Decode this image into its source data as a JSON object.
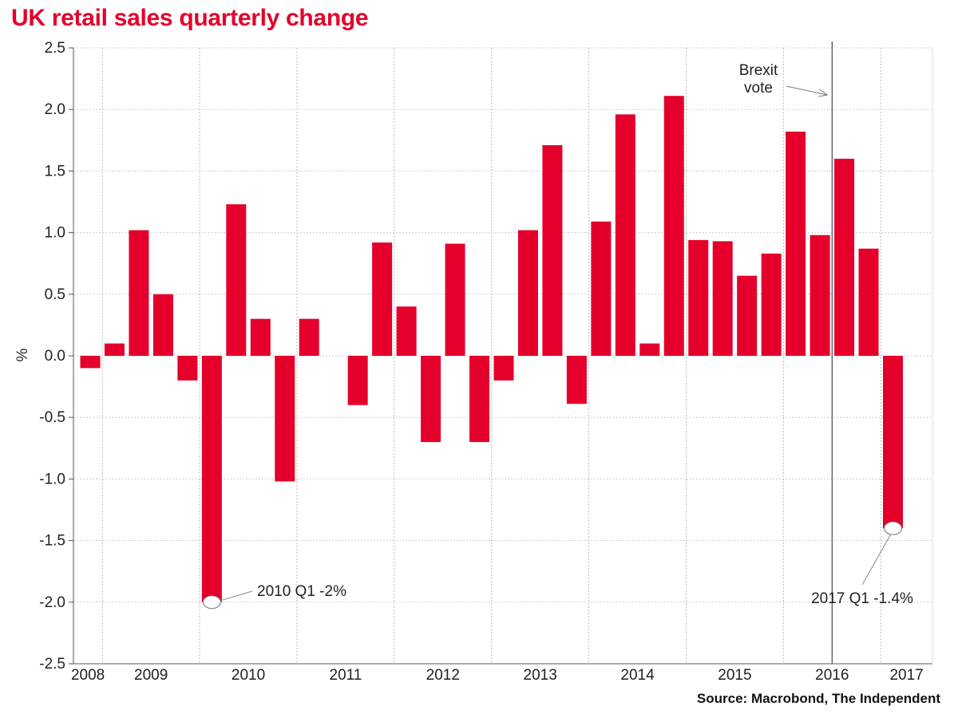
{
  "chart_data": {
    "type": "bar",
    "title": "UK retail sales quarterly change",
    "ylabel": "%",
    "ylim": [
      -2.5,
      2.5
    ],
    "yticks": [
      2.5,
      2.0,
      1.5,
      1.0,
      0.5,
      0.0,
      -0.5,
      -1.0,
      -1.5,
      -2.0,
      -2.5
    ],
    "ytick_labels": [
      "2.5",
      "2.0",
      "1.5",
      "1.0",
      "0.5",
      "0.0",
      "-0.5",
      "-1.0",
      "-1.5",
      "-2.0",
      "-2.5"
    ],
    "year_labels": [
      "2008",
      "2009",
      "2010",
      "2011",
      "2012",
      "2013",
      "2014",
      "2015",
      "2016",
      "2017"
    ],
    "quarters": [
      "2008 Q4",
      "2009 Q1",
      "2009 Q2",
      "2009 Q3",
      "2009 Q4",
      "2010 Q1",
      "2010 Q2",
      "2010 Q3",
      "2010 Q4",
      "2011 Q1",
      "2011 Q2",
      "2011 Q3",
      "2011 Q4",
      "2012 Q1",
      "2012 Q2",
      "2012 Q3",
      "2012 Q4",
      "2013 Q1",
      "2013 Q2",
      "2013 Q3",
      "2013 Q4",
      "2014 Q1",
      "2014 Q2",
      "2014 Q3",
      "2014 Q4",
      "2015 Q1",
      "2015 Q2",
      "2015 Q3",
      "2015 Q4",
      "2016 Q1",
      "2016 Q2",
      "2016 Q3",
      "2016 Q4",
      "2017 Q1"
    ],
    "values": [
      -0.1,
      0.1,
      1.02,
      0.5,
      -0.2,
      -2.0,
      1.23,
      0.3,
      -1.02,
      0.3,
      0.0,
      -0.4,
      0.92,
      0.4,
      -0.7,
      0.91,
      -0.7,
      -0.2,
      1.02,
      1.71,
      -0.39,
      1.09,
      1.96,
      0.1,
      2.11,
      0.94,
      0.93,
      0.65,
      0.83,
      1.82,
      0.98,
      1.6,
      0.87,
      -1.4
    ],
    "bar_color": "#e4002b",
    "grid": true,
    "annotations": [
      {
        "text": "2010 Q1  -2%",
        "quarter": "2010 Q1",
        "value": -2.0
      },
      {
        "text": "2017 Q1  -1.4%",
        "quarter": "2017 Q1",
        "value": -1.4
      },
      {
        "text_line1": "Brexit",
        "text_line2": "vote"
      }
    ]
  },
  "source": "Source: Macrobond, The Independent"
}
